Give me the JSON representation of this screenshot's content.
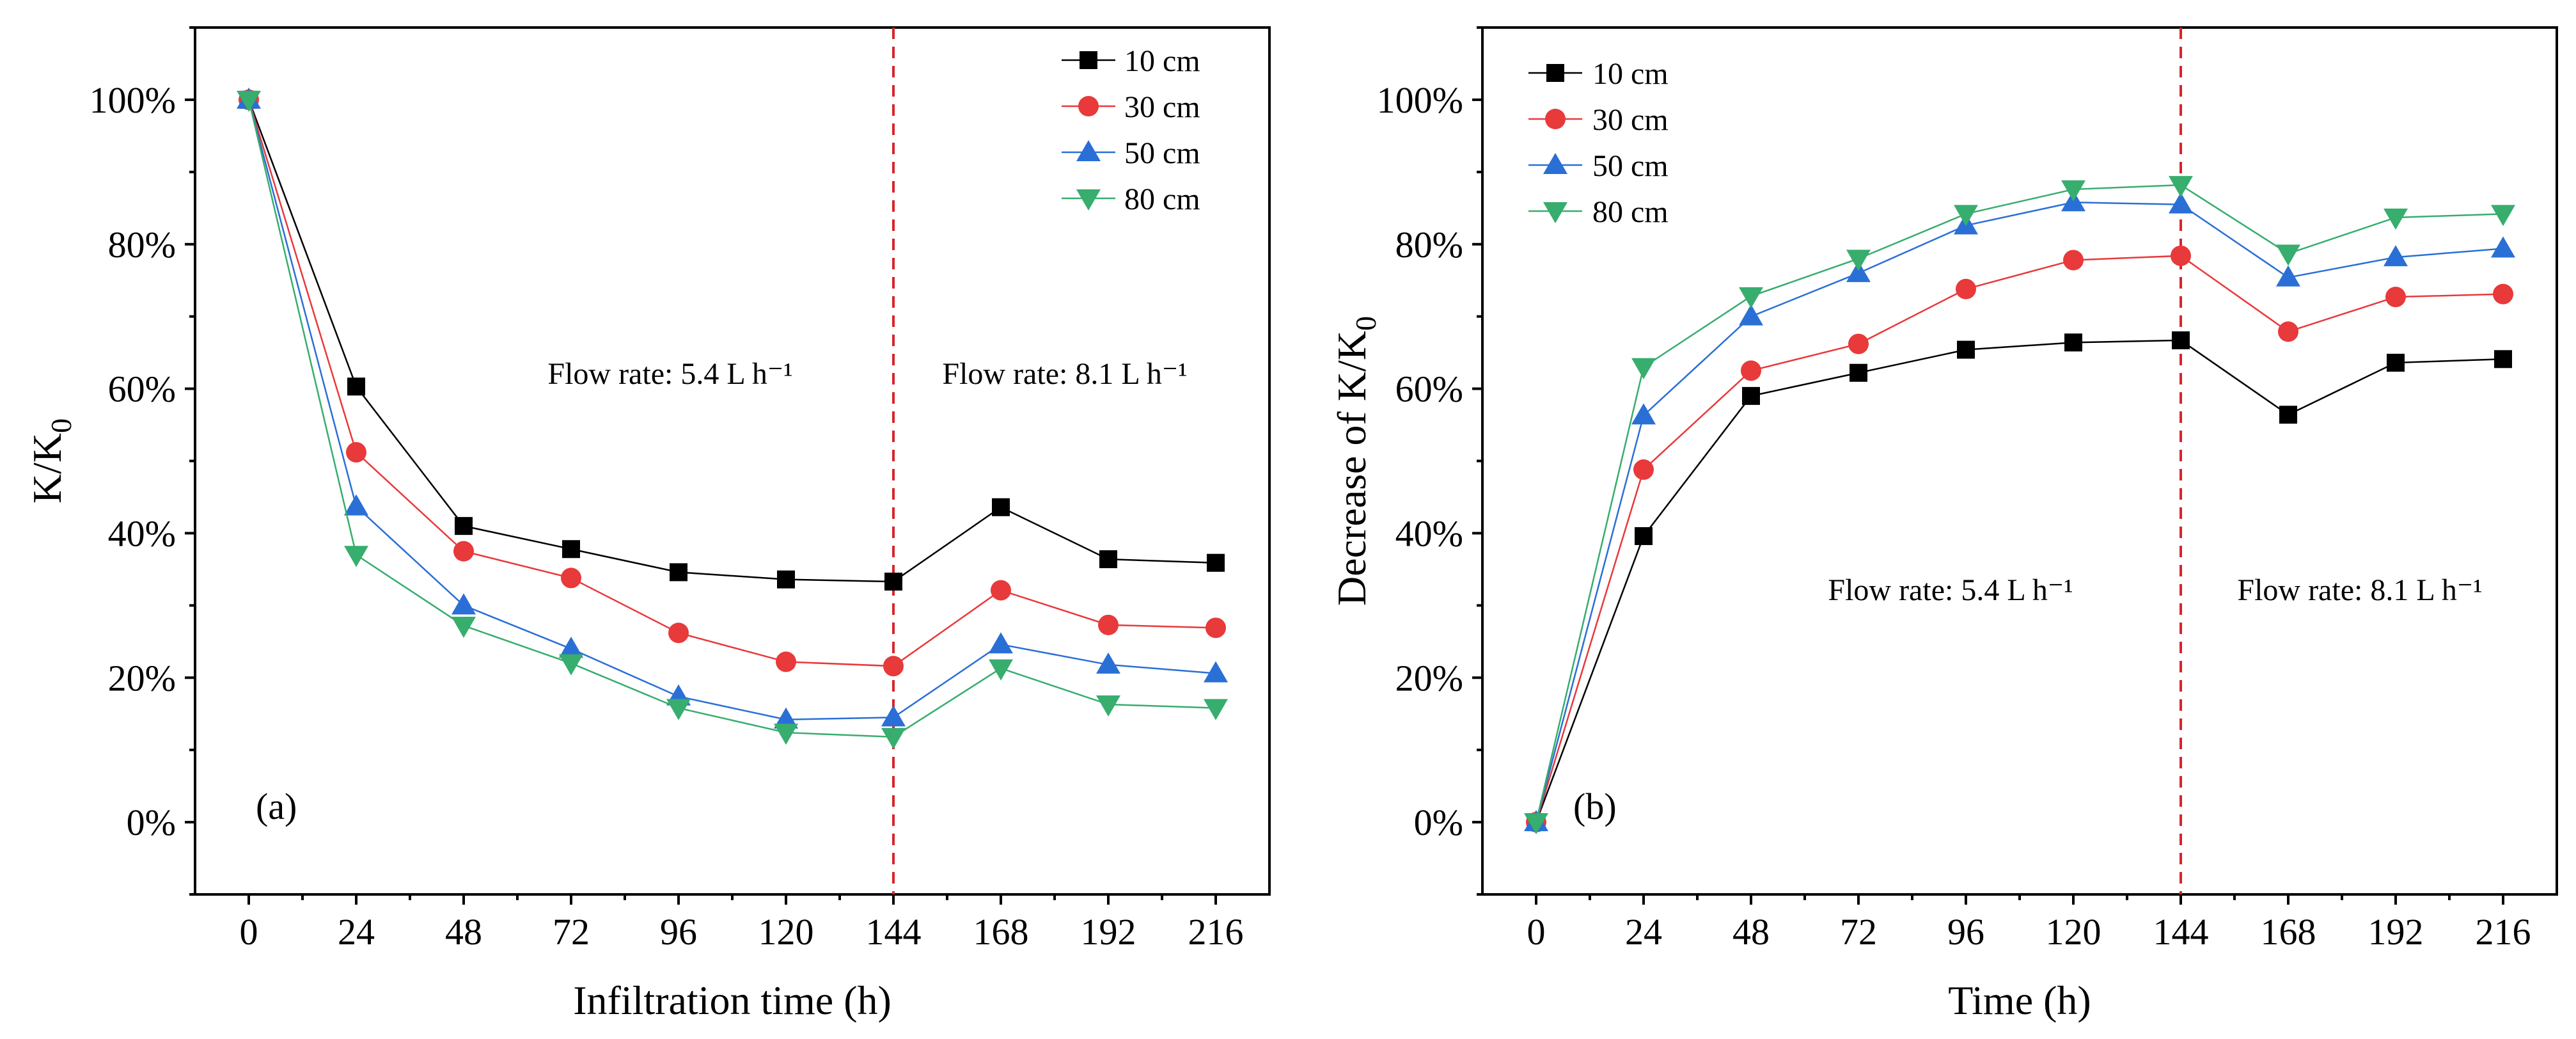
{
  "chart_data": [
    {
      "type": "line",
      "panel_label": "(a)",
      "xlabel": "Infiltration time (h)",
      "ylabel": "K/K",
      "ylabel_sub": "0",
      "x": [
        0,
        24,
        48,
        72,
        96,
        120,
        144,
        168,
        192,
        216
      ],
      "x_ticks": [
        "0",
        "24",
        "48",
        "72",
        "96",
        "120",
        "144",
        "168",
        "192",
        "216"
      ],
      "xlim": [
        -12,
        228
      ],
      "ylim": [
        -10,
        110
      ],
      "y_ticks": [
        0,
        20,
        40,
        60,
        80,
        100
      ],
      "y_tick_labels": [
        "0%",
        "20%",
        "40%",
        "60%",
        "80%",
        "100%"
      ],
      "divider_x": 144,
      "annotations": [
        "Flow rate: 5.4 L h⁻¹",
        "Flow rate: 8.1 L h⁻¹"
      ],
      "legend_position": "top-right",
      "series": [
        {
          "name": "10 cm",
          "marker": "square",
          "values": [
            100,
            60.3,
            41.0,
            37.8,
            34.6,
            33.6,
            33.3,
            43.6,
            36.4,
            35.9
          ]
        },
        {
          "name": "30 cm",
          "marker": "circle",
          "values": [
            100,
            51.2,
            37.5,
            33.8,
            26.2,
            22.2,
            21.6,
            32.1,
            27.3,
            26.9
          ]
        },
        {
          "name": "50 cm",
          "marker": "triangle-up",
          "values": [
            100,
            43.7,
            30.0,
            24.0,
            17.4,
            14.2,
            14.5,
            24.6,
            21.8,
            20.6
          ]
        },
        {
          "name": "80 cm",
          "marker": "triangle-down",
          "values": [
            100,
            37.0,
            27.2,
            22.0,
            15.8,
            12.4,
            11.8,
            21.3,
            16.3,
            15.8
          ]
        }
      ]
    },
    {
      "type": "line",
      "panel_label": "(b)",
      "xlabel": "Time (h)",
      "ylabel": "Decrease of K/K",
      "ylabel_sub": "0",
      "x": [
        0,
        24,
        48,
        72,
        96,
        120,
        144,
        168,
        192,
        216
      ],
      "x_ticks": [
        "0",
        "24",
        "48",
        "72",
        "96",
        "120",
        "144",
        "168",
        "192",
        "216"
      ],
      "xlim": [
        -12,
        228
      ],
      "ylim": [
        -10,
        110
      ],
      "y_ticks": [
        0,
        20,
        40,
        60,
        80,
        100
      ],
      "y_tick_labels": [
        "0%",
        "20%",
        "40%",
        "60%",
        "80%",
        "100%"
      ],
      "divider_x": 144,
      "annotations": [
        "Flow rate: 5.4 L h⁻¹",
        "Flow rate: 8.1 L h⁻¹"
      ],
      "legend_position": "top-left",
      "series": [
        {
          "name": "10 cm",
          "marker": "square",
          "values": [
            0,
            39.6,
            59.0,
            62.2,
            65.4,
            66.4,
            66.7,
            56.4,
            63.6,
            64.1
          ]
        },
        {
          "name": "30 cm",
          "marker": "circle",
          "values": [
            0,
            48.8,
            62.5,
            66.2,
            73.8,
            77.8,
            78.4,
            67.9,
            72.7,
            73.1
          ]
        },
        {
          "name": "50 cm",
          "marker": "triangle-up",
          "values": [
            0,
            56.3,
            70.0,
            76.0,
            82.6,
            85.8,
            85.5,
            75.4,
            78.2,
            79.4
          ]
        },
        {
          "name": "80 cm",
          "marker": "triangle-down",
          "values": [
            0,
            63.0,
            72.8,
            78.0,
            84.2,
            87.6,
            88.2,
            78.7,
            83.7,
            84.2
          ]
        }
      ]
    }
  ],
  "colors": {
    "series": [
      "#000000",
      "#e8393b",
      "#2a6fd6",
      "#37ad6e"
    ],
    "divider": "#d6252b"
  }
}
